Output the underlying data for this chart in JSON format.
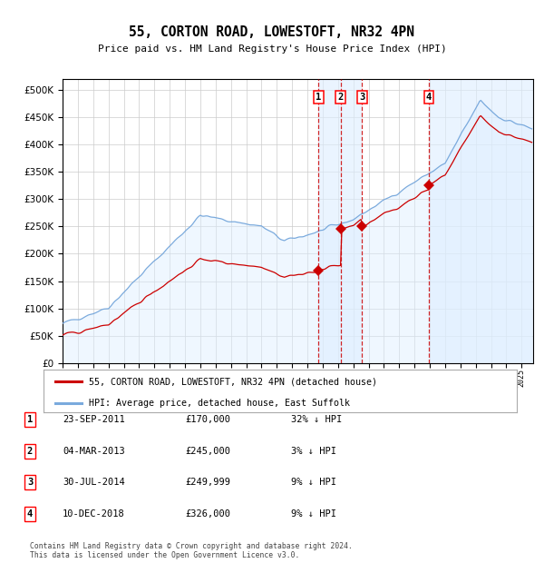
{
  "title": "55, CORTON ROAD, LOWESTOFT, NR32 4PN",
  "subtitle": "Price paid vs. HM Land Registry's House Price Index (HPI)",
  "legend_line1": "55, CORTON ROAD, LOWESTOFT, NR32 4PN (detached house)",
  "legend_line2": "HPI: Average price, detached house, East Suffolk",
  "footer1": "Contains HM Land Registry data © Crown copyright and database right 2024.",
  "footer2": "This data is licensed under the Open Government Licence v3.0.",
  "transactions": [
    {
      "num": 1,
      "date": "23-SEP-2011",
      "price": 170000,
      "hpi_pct": "32% ↓ HPI",
      "date_dec": 2011.73
    },
    {
      "num": 2,
      "date": "04-MAR-2013",
      "price": 245000,
      "hpi_pct": "3% ↓ HPI",
      "date_dec": 2013.17
    },
    {
      "num": 3,
      "date": "30-JUL-2014",
      "price": 249999,
      "hpi_pct": "9% ↓ HPI",
      "date_dec": 2014.58
    },
    {
      "num": 4,
      "date": "10-DEC-2018",
      "price": 326000,
      "hpi_pct": "9% ↓ HPI",
      "date_dec": 2018.94
    }
  ],
  "price_line_color": "#cc0000",
  "hpi_line_color": "#7aaadd",
  "shade_color": "#ddeeff",
  "vline_color": "#cc0000",
  "marker_color": "#cc0000",
  "yticks": [
    0,
    50000,
    100000,
    150000,
    200000,
    250000,
    300000,
    350000,
    400000,
    450000,
    500000
  ],
  "xlim_start": 1995.0,
  "xlim_end": 2025.75,
  "ylim_min": 0,
  "ylim_max": 520000,
  "background_color": "#ffffff",
  "grid_color": "#cccccc"
}
